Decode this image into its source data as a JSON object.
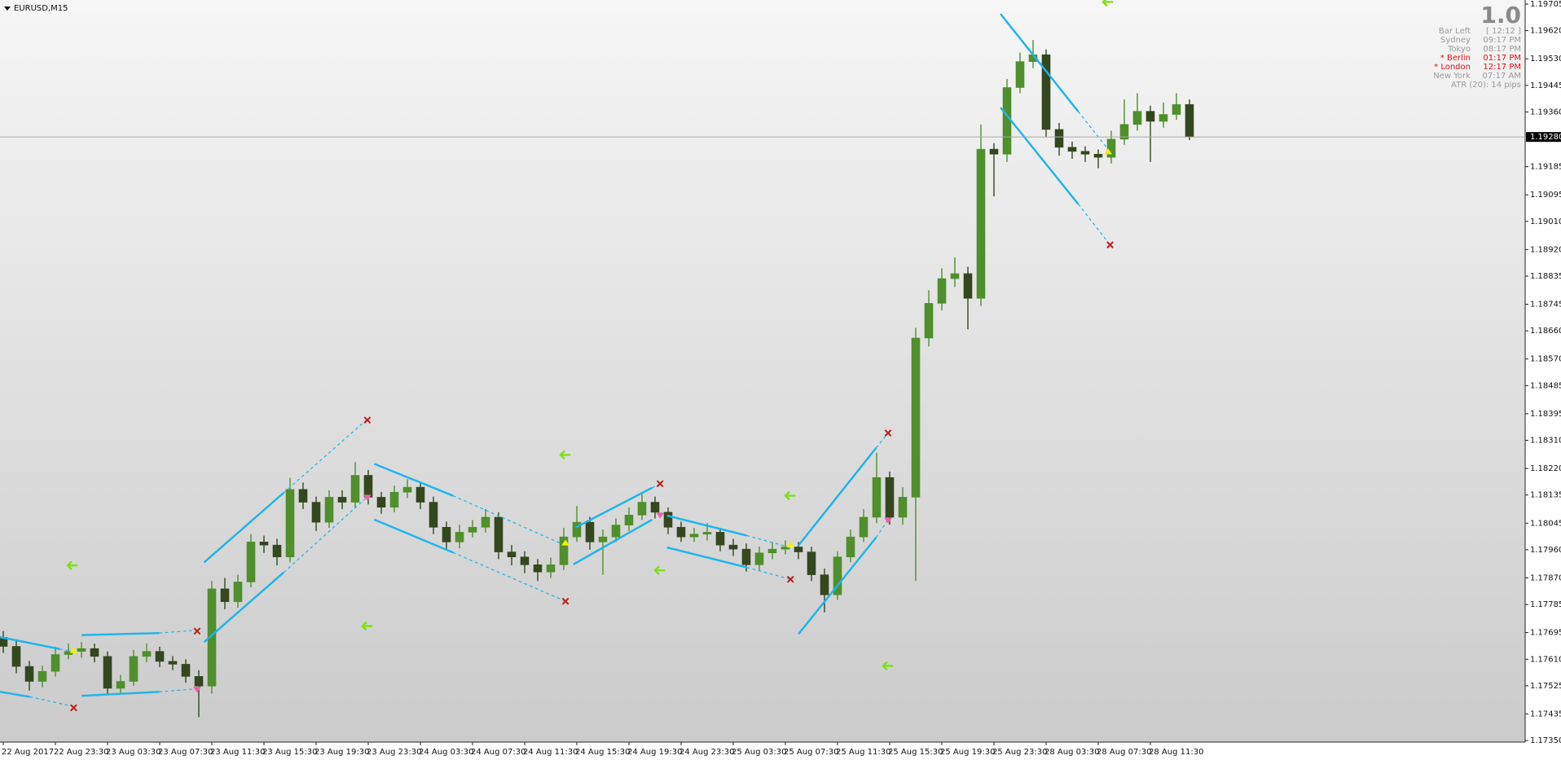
{
  "chart_data": {
    "type": "candlestick",
    "title": "EURUSD,M15",
    "categories": [
      "22 Aug 2017",
      null,
      null,
      null,
      "22 Aug 23:30",
      null,
      null,
      null,
      "23 Aug 03:30",
      null,
      null,
      null,
      "23 Aug 07:30",
      null,
      null,
      null,
      "23 Aug 11:30",
      null,
      null,
      null,
      "23 Aug 15:30",
      null,
      null,
      null,
      "23 Aug 19:30",
      null,
      null,
      null,
      "23 Aug 23:30",
      null,
      null,
      null,
      "24 Aug 03:30",
      null,
      null,
      null,
      "24 Aug 07:30",
      null,
      null,
      null,
      "24 Aug 11:30",
      null,
      null,
      null,
      "24 Aug 15:30",
      null,
      null,
      null,
      "24 Aug 19:30",
      null,
      null,
      null,
      "24 Aug 23:30",
      null,
      null,
      null,
      "25 Aug 03:30",
      null,
      null,
      null,
      "25 Aug 07:30",
      null,
      null,
      null,
      "25 Aug 11:30",
      null,
      null,
      null,
      "25 Aug 15:30",
      null,
      null,
      null,
      "25 Aug 19:30",
      null,
      null,
      null,
      "25 Aug 23:30",
      null,
      null,
      null,
      "28 Aug 03:30",
      null,
      null,
      null,
      "28 Aug 07:30",
      null,
      null,
      null,
      "28 Aug 11:30",
      null,
      null,
      null
    ],
    "open": [
      1.1768,
      1.17651,
      1.17587,
      1.17539,
      1.17571,
      1.17625,
      1.17635,
      1.17644,
      1.17619,
      1.17517,
      1.17539,
      1.17619,
      1.17635,
      1.17603,
      1.17594,
      1.17555,
      1.17524,
      1.17835,
      1.17794,
      1.17857,
      1.17985,
      1.17975,
      1.17937,
      1.18153,
      1.18112,
      1.18048,
      1.18128,
      1.18112,
      1.18198,
      1.18128,
      1.18096,
      1.18144,
      1.1816,
      1.18112,
      1.18032,
      1.17985,
      1.18016,
      1.18032,
      1.18064,
      1.17953,
      1.17937,
      1.17912,
      1.17889,
      1.17912,
      1.18001,
      1.18048,
      1.17985,
      1.18001,
      1.18039,
      1.18071,
      1.18112,
      1.1808,
      1.18032,
      1.18001,
      1.1801,
      1.18016,
      1.17975,
      1.17962,
      1.17912,
      1.1795,
      1.17962,
      1.17969,
      1.17953,
      1.1788,
      1.17816,
      1.17937,
      1.18001,
      1.18064,
      1.18191,
      1.18064,
      1.18128,
      1.18637,
      1.18748,
      1.18827,
      1.18843,
      1.18764,
      1.19241,
      1.19225,
      1.19438,
      1.19521,
      1.19543,
      1.19304,
      1.19247,
      1.19234,
      1.19225,
      1.19215,
      1.19273,
      1.1932,
      1.19362,
      1.1933,
      1.19352,
      1.19384
    ],
    "high": [
      1.177,
      1.1767,
      1.17605,
      1.1759,
      1.1765,
      1.1766,
      1.17665,
      1.1766,
      1.17635,
      1.1756,
      1.1764,
      1.1766,
      1.1765,
      1.1762,
      1.1761,
      1.17575,
      1.1786,
      1.1787,
      1.1788,
      1.1801,
      1.18005,
      1.17995,
      1.1819,
      1.18175,
      1.1813,
      1.1815,
      1.1815,
      1.1824,
      1.18215,
      1.18145,
      1.18165,
      1.18185,
      1.18175,
      1.1813,
      1.1805,
      1.1804,
      1.18055,
      1.1809,
      1.1808,
      1.17975,
      1.17955,
      1.1793,
      1.17935,
      1.1803,
      1.181,
      1.18065,
      1.18025,
      1.1806,
      1.18095,
      1.18145,
      1.1813,
      1.18095,
      1.1805,
      1.1803,
      1.18045,
      1.1803,
      1.17995,
      1.1798,
      1.1797,
      1.17985,
      1.1799,
      1.17985,
      1.1797,
      1.179,
      1.17955,
      1.18025,
      1.1809,
      1.1827,
      1.1821,
      1.1816,
      1.1867,
      1.1879,
      1.1886,
      1.18895,
      1.18865,
      1.1932,
      1.1926,
      1.19465,
      1.1955,
      1.1959,
      1.1956,
      1.19325,
      1.19265,
      1.1925,
      1.1924,
      1.193,
      1.194,
      1.1942,
      1.1938,
      1.1939,
      1.1942,
      1.194
    ],
    "low": [
      1.1763,
      1.17565,
      1.1751,
      1.1752,
      1.17555,
      1.1761,
      1.17615,
      1.176,
      1.17495,
      1.175,
      1.17525,
      1.176,
      1.17585,
      1.17575,
      1.17535,
      1.17425,
      1.175,
      1.1777,
      1.17775,
      1.1784,
      1.1795,
      1.1791,
      1.1792,
      1.1809,
      1.1802,
      1.1803,
      1.1809,
      1.18095,
      1.18105,
      1.18075,
      1.1808,
      1.18125,
      1.1809,
      1.1801,
      1.1796,
      1.17965,
      1.18,
      1.18015,
      1.1793,
      1.1791,
      1.17885,
      1.1786,
      1.1787,
      1.17895,
      1.17985,
      1.1796,
      1.1788,
      1.17985,
      1.1802,
      1.18055,
      1.1806,
      1.1801,
      1.17985,
      1.17985,
      1.1799,
      1.17955,
      1.1794,
      1.1789,
      1.17895,
      1.1793,
      1.17945,
      1.1793,
      1.1786,
      1.1776,
      1.178,
      1.1792,
      1.17985,
      1.18045,
      1.1804,
      1.1804,
      1.1786,
      1.1861,
      1.18725,
      1.188,
      1.18665,
      1.1874,
      1.1909,
      1.192,
      1.1942,
      1.195,
      1.1928,
      1.1922,
      1.1921,
      1.192,
      1.1918,
      1.19195,
      1.19255,
      1.193,
      1.192,
      1.1931,
      1.19335,
      1.1927
    ],
    "close": [
      1.17651,
      1.17587,
      1.17539,
      1.17571,
      1.17625,
      1.17635,
      1.17644,
      1.17619,
      1.17517,
      1.17539,
      1.17619,
      1.17635,
      1.17603,
      1.17594,
      1.17555,
      1.17524,
      1.17835,
      1.17794,
      1.17857,
      1.17985,
      1.17975,
      1.17937,
      1.18153,
      1.18112,
      1.18048,
      1.18128,
      1.18112,
      1.18198,
      1.18128,
      1.18096,
      1.18144,
      1.1816,
      1.18112,
      1.18032,
      1.17985,
      1.18016,
      1.18032,
      1.18064,
      1.17953,
      1.17937,
      1.17912,
      1.17889,
      1.17912,
      1.18001,
      1.18048,
      1.17985,
      1.18001,
      1.18039,
      1.18071,
      1.18112,
      1.1808,
      1.18032,
      1.18001,
      1.1801,
      1.18016,
      1.17975,
      1.17962,
      1.17912,
      1.1795,
      1.17962,
      1.17969,
      1.17953,
      1.1788,
      1.17816,
      1.17937,
      1.18001,
      1.18064,
      1.18191,
      1.18064,
      1.18128,
      1.18637,
      1.18748,
      1.18827,
      1.18843,
      1.18764,
      1.19241,
      1.19225,
      1.19438,
      1.19521,
      1.19543,
      1.19304,
      1.19247,
      1.19234,
      1.19225,
      1.19215,
      1.19273,
      1.1932,
      1.19362,
      1.1933,
      1.19352,
      1.19384,
      1.1928
    ],
    "up_color": "#4f8f2c",
    "down_color": "#34471f",
    "ylim": [
      1.17345,
      1.19718
    ],
    "yticks": [
      1.19705,
      {
        "value": 1.1962,
        "label": "1.19620"
      },
      {
        "value": 1.1953,
        "label": "1.19530"
      },
      1.19445,
      {
        "value": 1.1936,
        "label": "1.19360"
      },
      1.19185,
      1.19095,
      {
        "value": 1.1901,
        "label": "1.19010"
      },
      {
        "value": 1.1892,
        "label": "1.18920"
      },
      1.18835,
      1.18745,
      {
        "value": 1.1866,
        "label": "1.18660"
      },
      {
        "value": 1.1857,
        "label": "1.18570"
      },
      1.18485,
      1.18395,
      {
        "value": 1.1831,
        "label": "1.18310"
      },
      {
        "value": 1.1822,
        "label": "1.18220"
      },
      1.18135,
      1.18045,
      {
        "value": 1.1796,
        "label": "1.17960"
      },
      {
        "value": 1.1787,
        "label": "1.17870"
      },
      1.17785,
      1.17695,
      {
        "value": 1.1761,
        "label": "1.17610"
      },
      1.17525,
      1.17435,
      {
        "value": 1.1735,
        "label": "1.17350"
      }
    ],
    "current_price": {
      "value": 1.1928,
      "label": "1.19280"
    }
  },
  "info_panel": {
    "big_value": "1.0",
    "rows": [
      {
        "label": "Bar Left",
        "value": "[ 12:12 ]",
        "color": "#9a9a9a"
      },
      {
        "label": "Sydney",
        "value": "09:17 PM",
        "color": "#9a9a9a"
      },
      {
        "label": "Tokyo",
        "value": "08:17 PM",
        "color": "#9a9a9a"
      },
      {
        "label": "* Berlin",
        "value": "01:17 PM",
        "color": "#e01010"
      },
      {
        "label": "* London",
        "value": "12:17 PM",
        "color": "#e01010"
      },
      {
        "label": "New York",
        "value": "07:17 AM",
        "color": "#9a9a9a"
      }
    ],
    "atr": "ATR (20): 14 pips"
  }
}
